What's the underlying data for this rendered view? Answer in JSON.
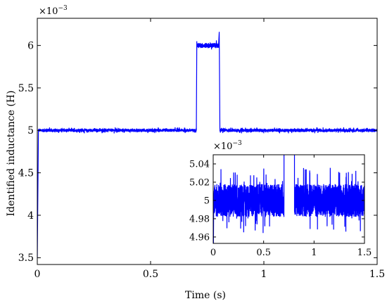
{
  "chart_data": [
    {
      "id": "main",
      "type": "line",
      "title": "",
      "xlabel": "Time (s)",
      "ylabel": "Identified inductance (H)",
      "multiplier_label": "×10",
      "multiplier_exp": "−3",
      "xlim": [
        0,
        1.5
      ],
      "ylim": [
        3.42,
        6.32
      ],
      "xticks": [
        0,
        0.5,
        1,
        1.5
      ],
      "xtick_labels": [
        "0",
        "0.5",
        "1",
        "1.5"
      ],
      "yticks": [
        3.5,
        4,
        4.5,
        5,
        5.5,
        6
      ],
      "ytick_labels": [
        "3.5",
        "4",
        "4.5",
        "5",
        "5.5",
        "6"
      ],
      "grid": false,
      "series": [
        {
          "color": "#0000ff",
          "description_points": [
            {
              "x": 0,
              "y": 3.5
            },
            {
              "x": 0.005,
              "y": 4.96
            },
            {
              "x": 0.7,
              "y": 5.0
            },
            {
              "x": 0.705,
              "y": 6.05
            },
            {
              "x": 0.8,
              "y": 6.0
            },
            {
              "x": 0.803,
              "y": 6.16
            },
            {
              "x": 0.805,
              "y": 5.0
            },
            {
              "x": 1.5,
              "y": 5.0
            }
          ],
          "segments": [
            {
              "t0": 0.0,
              "t1": 0.005,
              "y0": 3.5,
              "y1": 4.98,
              "noise": 0.0
            },
            {
              "t0": 0.005,
              "t1": 0.702,
              "y": 5.0,
              "noise": 0.018
            },
            {
              "t0": 0.702,
              "t1": 0.704,
              "y0": 5.0,
              "y1": 6.05,
              "noise": 0.0
            },
            {
              "t0": 0.704,
              "t1": 0.8,
              "y": 6.0,
              "noise": 0.03
            },
            {
              "t0": 0.8,
              "t1": 0.803,
              "y0": 6.0,
              "y1": 6.16,
              "noise": 0.0
            },
            {
              "t0": 0.803,
              "t1": 0.806,
              "y0": 6.16,
              "y1": 5.0,
              "noise": 0.0
            },
            {
              "t0": 0.806,
              "t1": 1.5,
              "y": 5.0,
              "noise": 0.018
            }
          ]
        }
      ]
    },
    {
      "id": "inset",
      "type": "line",
      "title": "",
      "xlabel": "",
      "ylabel": "",
      "multiplier_label": "×10",
      "multiplier_exp": "−3",
      "xlim": [
        0,
        1.5
      ],
      "ylim": [
        4.953,
        5.05
      ],
      "xticks": [
        0,
        0.5,
        1,
        1.5
      ],
      "xtick_labels": [
        "0",
        "0.5",
        "1",
        "1.5"
      ],
      "yticks": [
        4.96,
        4.98,
        5,
        5.02,
        5.04
      ],
      "ytick_labels": [
        "4.96",
        "4.98",
        "5",
        "5.02",
        "5.04"
      ],
      "grid": false,
      "series": [
        {
          "color": "#0000ff",
          "segments": [
            {
              "t0": 0.0,
              "t1": 0.005,
              "y0": 4.9,
              "y1": 5.0,
              "noise": 0.0
            },
            {
              "t0": 0.005,
              "t1": 0.702,
              "y": 5.0,
              "noise": 0.018
            },
            {
              "t0": 0.702,
              "t1": 0.704,
              "y0": 5.0,
              "y1": 6.05,
              "noise": 0.0
            },
            {
              "t0": 0.704,
              "t1": 0.8,
              "y": 6.0,
              "noise": 0.03
            },
            {
              "t0": 0.8,
              "t1": 0.803,
              "y0": 6.0,
              "y1": 6.16,
              "noise": 0.0
            },
            {
              "t0": 0.803,
              "t1": 0.806,
              "y0": 6.16,
              "y1": 5.0,
              "noise": 0.0
            },
            {
              "t0": 0.806,
              "t1": 1.5,
              "y": 5.0,
              "noise": 0.018
            }
          ]
        }
      ]
    }
  ]
}
